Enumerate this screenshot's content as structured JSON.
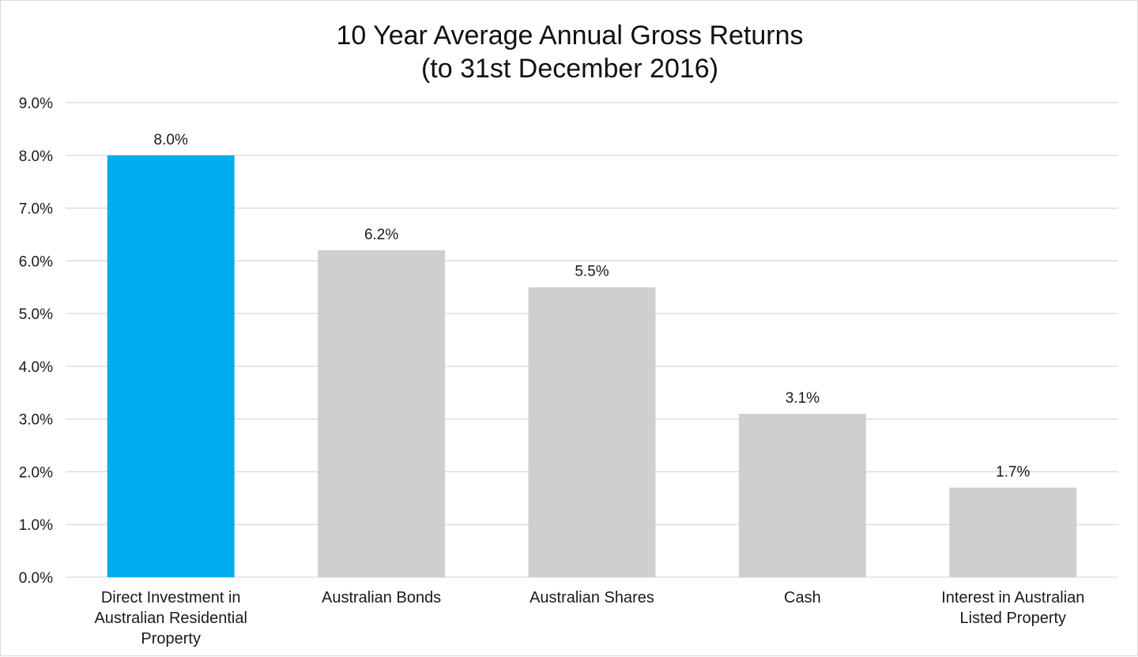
{
  "chart_data": {
    "type": "bar",
    "title": [
      "10 Year Average Annual Gross Returns",
      "(to 31st December 2016)"
    ],
    "categories": [
      [
        "Direct Investment in",
        "Australian Residential",
        "Property"
      ],
      [
        "Australian Bonds"
      ],
      [
        "Australian Shares"
      ],
      [
        "Cash"
      ],
      [
        "Interest in Australian",
        "Listed Property"
      ]
    ],
    "values": [
      8.0,
      6.2,
      5.5,
      3.1,
      1.7
    ],
    "data_labels": [
      "8.0%",
      "6.2%",
      "5.5%",
      "3.1%",
      "1.7%"
    ],
    "bar_colors": [
      "#00aeef",
      "#d0cfd0",
      "#d0cfd0",
      "#d0cfd0",
      "#d0cfd0"
    ],
    "ylim": [
      0,
      9
    ],
    "yticks": [
      0,
      1,
      2,
      3,
      4,
      5,
      6,
      7,
      8,
      9
    ],
    "ytick_labels": [
      "0.0%",
      "1.0%",
      "2.0%",
      "3.0%",
      "4.0%",
      "5.0%",
      "6.0%",
      "7.0%",
      "8.0%",
      "9.0%"
    ],
    "xlabel": "",
    "ylabel": "",
    "grid": true,
    "legend": "none",
    "gridline_color": "#d9d9d9"
  }
}
